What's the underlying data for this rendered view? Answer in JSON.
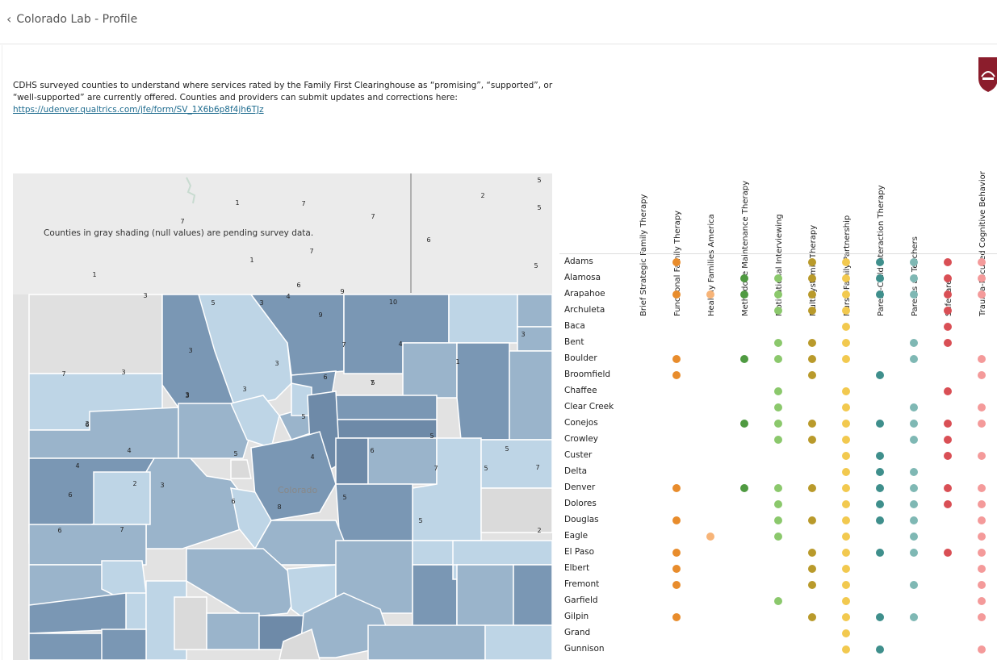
{
  "header": {
    "back_label": "Colorado Lab - Profile"
  },
  "intro": {
    "text": "CDHS surveyed counties to understand where services rated by the Family First Clearinghouse as “promising”, “supported”, or “well-supported” are currently offered. Counties and providers can submit updates and corrections here:",
    "link": "https://udenver.qualtrics.com/jfe/form/SV_1X6b6p8f4jh6TJz"
  },
  "map": {
    "note": "Counties in gray shading (null values) are pending survey data.",
    "state_label": "Colorado",
    "county_values": [
      "1",
      "7",
      "7",
      "2",
      "5",
      "5",
      "6",
      "5",
      "1",
      "7",
      "1",
      "3",
      "5",
      "3",
      "6",
      "7",
      "9",
      "10",
      "4",
      "9",
      "3",
      "7",
      "4",
      "3",
      "3",
      "7",
      "3",
      "5",
      "3",
      "6",
      "6",
      "7",
      "1",
      "3",
      "3",
      "3",
      "5",
      "5",
      "4",
      "4",
      "4",
      "5",
      "6",
      "2",
      "3",
      "5",
      "7",
      "5",
      "7",
      "6",
      "6",
      "8",
      "5",
      "6",
      "7",
      "5",
      "2"
    ]
  },
  "matrix": {
    "colors": {
      "orange": "#e88c2c",
      "peach": "#f7b478",
      "green": "#4f9a41",
      "lightgreen": "#8bc86c",
      "olive": "#b99a2b",
      "yellow": "#f2c94f",
      "teal": "#3f8f8c",
      "lightteal": "#7fb8b4",
      "red": "#d94f55",
      "pink": "#f49a9a"
    },
    "columns": [
      {
        "label": "Brief Strategic Family Therapy",
        "color": "orange"
      },
      {
        "label": "Functional Family Therapy",
        "color": "orange"
      },
      {
        "label": "Healthy Families America",
        "color": "peach"
      },
      {
        "label": "Methadone Maintenance Therapy",
        "color": "green"
      },
      {
        "label": "Motivational Interviewing",
        "color": "lightgreen"
      },
      {
        "label": "Multisystemic Therapy",
        "color": "olive"
      },
      {
        "label": "Nurse-Family Partnership",
        "color": "yellow"
      },
      {
        "label": "Parent-Child Interaction Therapy",
        "color": "teal"
      },
      {
        "label": "Parents as Teachers",
        "color": "lightteal"
      },
      {
        "label": "SafeCare",
        "color": "red"
      },
      {
        "label": "Trauma-Focused Cognitive Behavior",
        "color": "pink"
      }
    ],
    "rows": [
      {
        "county": "Adams",
        "services": [
          1,
          5,
          6,
          7,
          8,
          9,
          10
        ]
      },
      {
        "county": "Alamosa",
        "services": [
          3,
          4,
          5,
          6,
          7,
          8,
          9,
          10
        ]
      },
      {
        "county": "Arapahoe",
        "services": [
          1,
          2,
          3,
          4,
          5,
          6,
          7,
          8,
          9,
          10
        ]
      },
      {
        "county": "Archuleta",
        "services": [
          4,
          5,
          6,
          9
        ]
      },
      {
        "county": "Baca",
        "services": [
          6,
          9
        ]
      },
      {
        "county": "Bent",
        "services": [
          4,
          5,
          6,
          8,
          9
        ]
      },
      {
        "county": "Boulder",
        "services": [
          1,
          3,
          4,
          5,
          6,
          8,
          10
        ]
      },
      {
        "county": "Broomfield",
        "services": [
          1,
          5,
          7,
          10
        ]
      },
      {
        "county": "Chaffee",
        "services": [
          4,
          6,
          9
        ]
      },
      {
        "county": "Clear Creek",
        "services": [
          4,
          6,
          8,
          10
        ]
      },
      {
        "county": "Conejos",
        "services": [
          3,
          4,
          5,
          6,
          7,
          8,
          9,
          10
        ]
      },
      {
        "county": "Crowley",
        "services": [
          4,
          5,
          6,
          8,
          9
        ]
      },
      {
        "county": "Custer",
        "services": [
          6,
          7,
          9,
          10
        ]
      },
      {
        "county": "Delta",
        "services": [
          6,
          7,
          8
        ]
      },
      {
        "county": "Denver",
        "services": [
          1,
          3,
          4,
          5,
          6,
          7,
          8,
          9,
          10
        ]
      },
      {
        "county": "Dolores",
        "services": [
          4,
          6,
          7,
          8,
          9,
          10
        ]
      },
      {
        "county": "Douglas",
        "services": [
          1,
          4,
          5,
          6,
          7,
          8,
          10
        ]
      },
      {
        "county": "Eagle",
        "services": [
          2,
          4,
          6,
          8,
          10
        ]
      },
      {
        "county": "El Paso",
        "services": [
          1,
          5,
          6,
          7,
          8,
          9,
          10
        ]
      },
      {
        "county": "Elbert",
        "services": [
          1,
          5,
          6,
          10
        ]
      },
      {
        "county": "Fremont",
        "services": [
          1,
          5,
          6,
          8,
          10
        ]
      },
      {
        "county": "Garfield",
        "services": [
          4,
          6,
          10
        ]
      },
      {
        "county": "Gilpin",
        "services": [
          1,
          5,
          6,
          7,
          8,
          10
        ]
      },
      {
        "county": "Grand",
        "services": [
          6
        ]
      },
      {
        "county": "Gunnison",
        "services": [
          6,
          7,
          10
        ]
      }
    ]
  }
}
